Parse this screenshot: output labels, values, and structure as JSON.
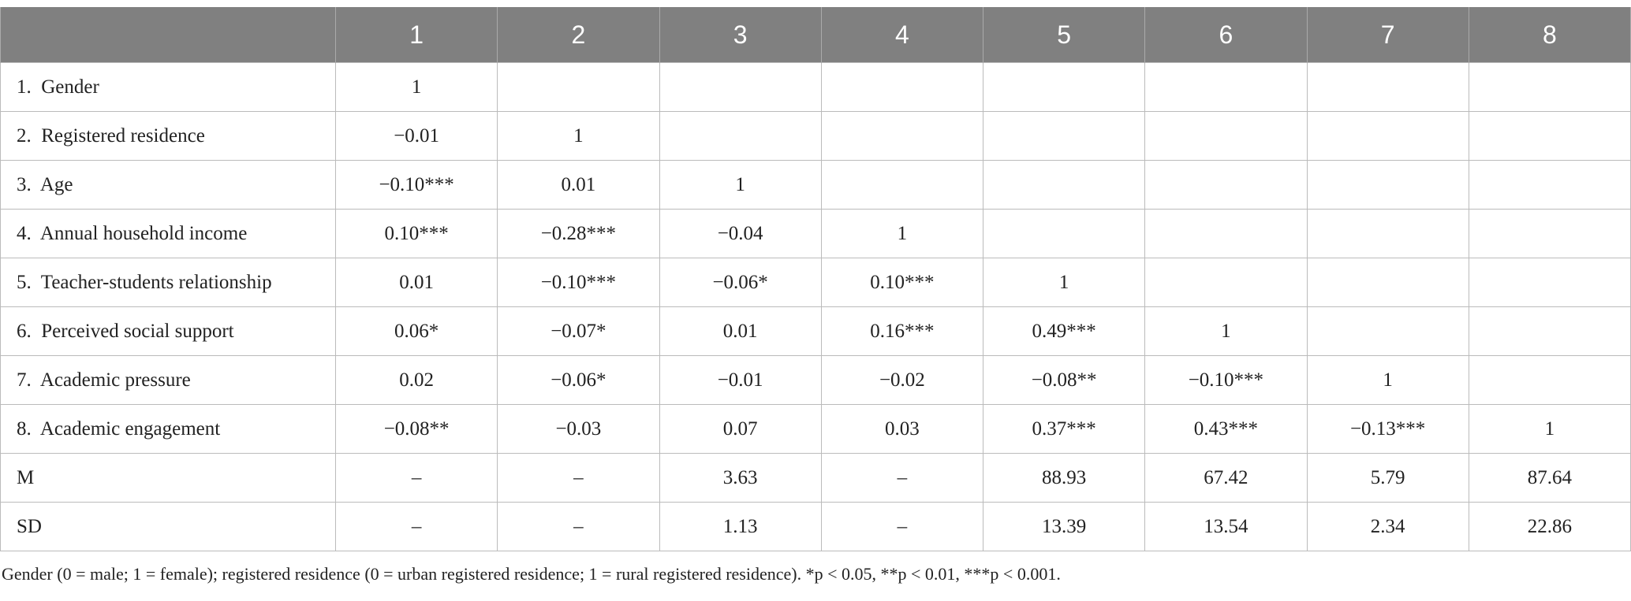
{
  "header": {
    "columns": [
      "1",
      "2",
      "3",
      "4",
      "5",
      "6",
      "7",
      "8"
    ]
  },
  "table": {
    "rows": [
      [
        "1.  Gender",
        "1"
      ],
      [
        "2.  Registered residence",
        "−0.01",
        "1"
      ],
      [
        "3.  Age",
        "−0.10***",
        "0.01",
        "1"
      ],
      [
        "4.  Annual household income",
        "0.10***",
        "−0.28***",
        "−0.04",
        "1"
      ],
      [
        "5.  Teacher-students relationship",
        "0.01",
        "−0.10***",
        "−0.06*",
        "0.10***",
        "1"
      ],
      [
        "6.  Perceived social support",
        "0.06*",
        "−0.07*",
        "0.01",
        "0.16***",
        "0.49***",
        "1"
      ],
      [
        "7.  Academic pressure",
        "0.02",
        "−0.06*",
        "−0.01",
        "−0.02",
        "−0.08**",
        "−0.10***",
        "1"
      ],
      [
        "8.  Academic engagement",
        "−0.08**",
        "−0.03",
        "0.07",
        "0.03",
        "0.37***",
        "0.43***",
        "−0.13***",
        "1"
      ],
      [
        "M",
        "–",
        "–",
        "3.63",
        "–",
        "88.93",
        "67.42",
        "5.79",
        "87.64"
      ],
      [
        "SD",
        "–",
        "–",
        "1.13",
        "–",
        "13.39",
        "13.54",
        "2.34",
        "22.86"
      ]
    ]
  },
  "footnote": "Gender (0 = male; 1 = female); registered residence (0 = urban registered residence; 1 = rural registered residence). *p < 0.05, **p < 0.01, ***p < 0.001."
}
